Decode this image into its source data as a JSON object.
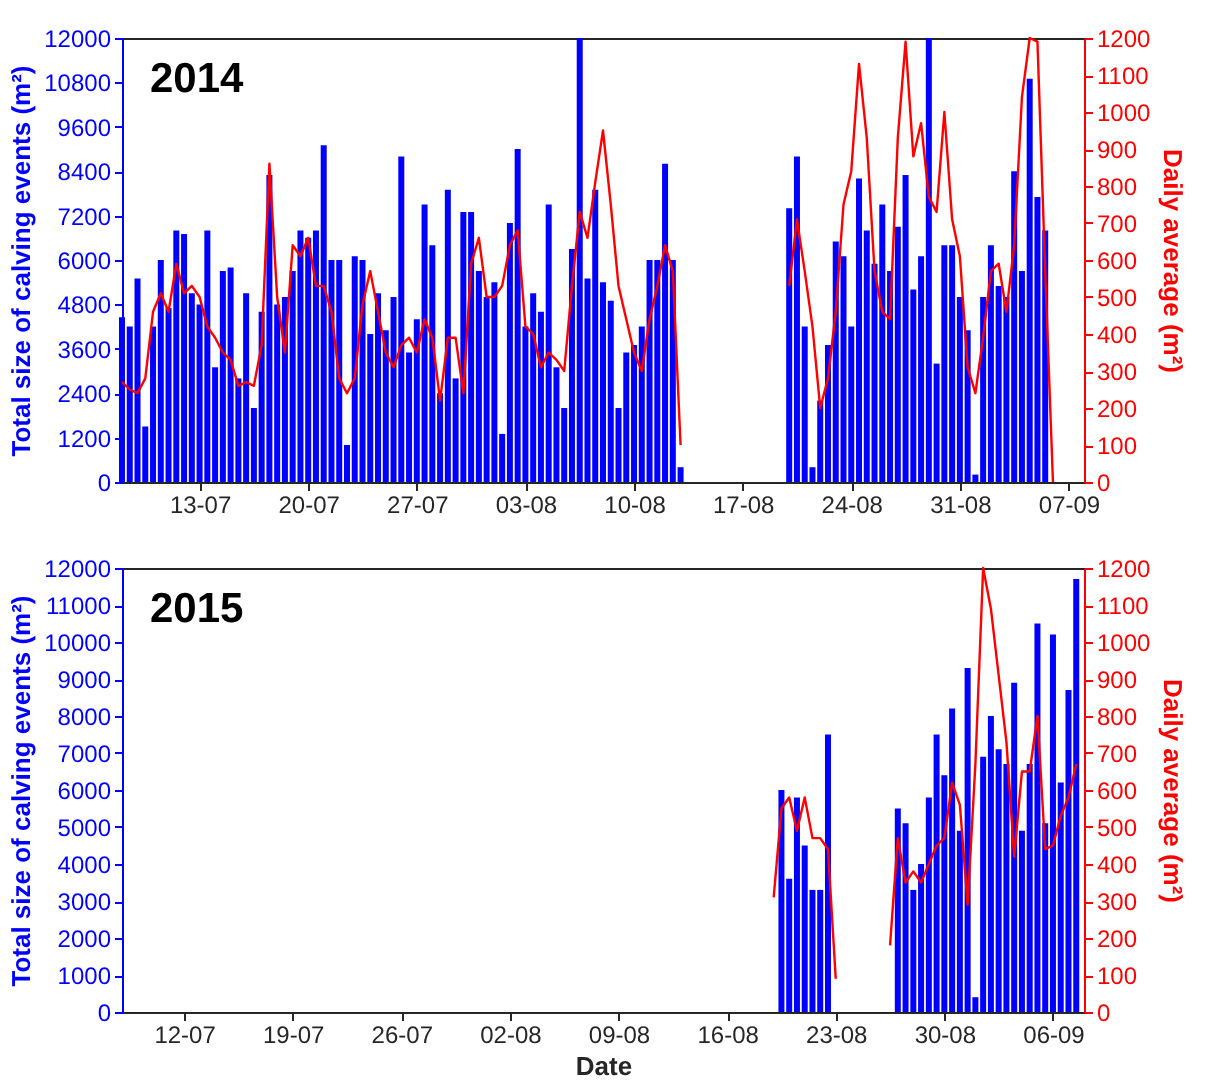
{
  "chart_data": [
    {
      "type": "bar",
      "title": "2014",
      "ylabel": "Total size of calving events (m²)",
      "y2label": "Daily average (m²)",
      "x": [
        "2014-07-08T00:00",
        "2014-07-08T12:00",
        "2014-07-09T00:00",
        "2014-07-09T12:00",
        "2014-07-10T00:00",
        "2014-07-10T12:00",
        "2014-07-11T00:00",
        "2014-07-11T12:00",
        "2014-07-12T00:00",
        "2014-07-12T12:00",
        "2014-07-13T00:00",
        "2014-07-13T12:00",
        "2014-07-14T00:00",
        "2014-07-14T12:00",
        "2014-07-15T00:00",
        "2014-07-15T12:00",
        "2014-07-16T00:00",
        "2014-07-16T12:00",
        "2014-07-17T00:00",
        "2014-07-17T12:00",
        "2014-07-18T00:00",
        "2014-07-18T12:00",
        "2014-07-19T00:00",
        "2014-07-19T12:00",
        "2014-07-20T00:00",
        "2014-07-20T12:00",
        "2014-07-21T00:00",
        "2014-07-21T12:00",
        "2014-07-22T00:00",
        "2014-07-22T12:00",
        "2014-07-23T00:00",
        "2014-07-23T12:00",
        "2014-07-24T00:00",
        "2014-07-24T12:00",
        "2014-07-25T00:00",
        "2014-07-25T12:00",
        "2014-07-26T00:00",
        "2014-07-26T12:00",
        "2014-07-27T00:00",
        "2014-07-27T12:00",
        "2014-07-28T00:00",
        "2014-07-28T12:00",
        "2014-07-29T00:00",
        "2014-07-29T12:00",
        "2014-07-30T00:00",
        "2014-07-30T12:00",
        "2014-07-31T00:00",
        "2014-07-31T12:00",
        "2014-08-01T00:00",
        "2014-08-01T12:00",
        "2014-08-02T00:00",
        "2014-08-02T12:00",
        "2014-08-03T00:00",
        "2014-08-03T12:00",
        "2014-08-04T00:00",
        "2014-08-04T12:00",
        "2014-08-05T00:00",
        "2014-08-05T12:00",
        "2014-08-06T00:00",
        "2014-08-06T12:00",
        "2014-08-07T00:00",
        "2014-08-07T12:00",
        "2014-08-08T00:00",
        "2014-08-08T12:00",
        "2014-08-09T00:00",
        "2014-08-09T12:00",
        "2014-08-10T00:00",
        "2014-08-10T12:00",
        "2014-08-11T00:00",
        "2014-08-11T12:00",
        "2014-08-12T00:00",
        "2014-08-12T12:00",
        "2014-08-13T00:00",
        "2014-08-13T12:00",
        "2014-08-14T00:00",
        "2014-08-14T12:00",
        "2014-08-15T00:00",
        "2014-08-15T12:00",
        "2014-08-16T00:00",
        "2014-08-16T12:00",
        "2014-08-17T00:00",
        "2014-08-17T12:00",
        "2014-08-18T00:00",
        "2014-08-18T12:00",
        "2014-08-19T00:00",
        "2014-08-19T12:00",
        "2014-08-20T00:00",
        "2014-08-20T12:00",
        "2014-08-21T00:00",
        "2014-08-21T12:00",
        "2014-08-22T00:00",
        "2014-08-22T12:00",
        "2014-08-23T00:00",
        "2014-08-23T12:00",
        "2014-08-24T00:00",
        "2014-08-24T12:00",
        "2014-08-25T00:00",
        "2014-08-25T12:00",
        "2014-08-26T00:00",
        "2014-08-26T12:00",
        "2014-08-27T00:00",
        "2014-08-27T12:00",
        "2014-08-28T00:00",
        "2014-08-28T12:00",
        "2014-08-29T00:00",
        "2014-08-29T12:00",
        "2014-08-30T00:00",
        "2014-08-30T12:00",
        "2014-08-31T00:00",
        "2014-08-31T12:00",
        "2014-09-01T00:00",
        "2014-09-01T12:00",
        "2014-09-02T00:00",
        "2014-09-02T12:00",
        "2014-09-03T00:00",
        "2014-09-03T12:00",
        "2014-09-04T00:00",
        "2014-09-04T12:00",
        "2014-09-05T00:00",
        "2014-09-05T12:00",
        "2014-09-06T00:00"
      ],
      "series": [
        {
          "color": "#0000ff",
          "values": [
            4450,
            4200,
            5500,
            1500,
            4200,
            6000,
            4700,
            6800,
            6700,
            5100,
            4800,
            6800,
            3100,
            5700,
            5800,
            2800,
            5100,
            2000,
            4600,
            8300,
            4800,
            5000,
            5700,
            6800,
            6600,
            6800,
            9100,
            6000,
            6000,
            1000,
            6100,
            6000,
            4000,
            5100,
            4100,
            5000,
            8800,
            3500,
            4400,
            7500,
            6400,
            2400,
            7900,
            2800,
            7300,
            7300,
            5700,
            5000,
            5400,
            1300,
            7000,
            9000,
            4200,
            5100,
            4600,
            7500,
            3100,
            2000,
            6300,
            12000,
            5500,
            7900,
            5400,
            4900,
            2000,
            3500,
            3700,
            4200,
            6000,
            6000,
            8600,
            6000,
            400,
            0,
            0,
            0,
            0,
            0,
            0,
            0,
            0,
            0,
            0,
            0,
            0,
            0,
            7400,
            8800,
            4200,
            400,
            2200,
            3700,
            6500,
            6100,
            4200,
            8200,
            6800,
            5900,
            7500,
            5700,
            6900,
            8300,
            5200,
            6100,
            12000,
            3200,
            6400,
            6400,
            5000,
            4100,
            200,
            5000,
            6400,
            5300,
            5000,
            8400,
            5700,
            10900,
            7700,
            6800,
            0
          ]
        },
        {
          "type": "line",
          "axis": "y2",
          "color": "#ff0000",
          "values": [
            270,
            250,
            240,
            280,
            460,
            510,
            460,
            590,
            510,
            530,
            500,
            420,
            390,
            350,
            330,
            260,
            270,
            260,
            370,
            860,
            500,
            350,
            640,
            610,
            660,
            530,
            530,
            460,
            280,
            240,
            280,
            480,
            570,
            460,
            350,
            310,
            370,
            390,
            350,
            440,
            390,
            220,
            390,
            390,
            240,
            590,
            660,
            500,
            500,
            530,
            640,
            680,
            420,
            400,
            310,
            350,
            330,
            300,
            530,
            730,
            660,
            810,
            950,
            750,
            530,
            440,
            350,
            300,
            440,
            530,
            640,
            570,
            100,
            null,
            null,
            null,
            null,
            null,
            null,
            null,
            null,
            null,
            null,
            null,
            null,
            null,
            530,
            710,
            570,
            420,
            200,
            280,
            460,
            750,
            840,
            1130,
            930,
            570,
            460,
            440,
            930,
            1190,
            880,
            970,
            770,
            730,
            1000,
            710,
            610,
            310,
            240,
            390,
            570,
            590,
            460,
            640,
            1040,
            1200,
            1190,
            570,
            0
          ]
        }
      ],
      "xlim": [
        "2014-07-08",
        "2014-09-08"
      ],
      "xticks": [
        {
          "value": "2014-07-13",
          "label": "13-07"
        },
        {
          "value": "2014-07-20",
          "label": "20-07"
        },
        {
          "value": "2014-07-27",
          "label": "27-07"
        },
        {
          "value": "2014-08-03",
          "label": "03-08"
        },
        {
          "value": "2014-08-10",
          "label": "10-08"
        },
        {
          "value": "2014-08-17",
          "label": "17-08"
        },
        {
          "value": "2014-08-24",
          "label": "24-08"
        },
        {
          "value": "2014-08-31",
          "label": "31-08"
        },
        {
          "value": "2014-09-07",
          "label": "07-09"
        }
      ],
      "ylim": [
        0,
        12000
      ],
      "yticks": [
        0,
        1200,
        2400,
        3600,
        4800,
        6000,
        7200,
        8400,
        9600,
        10800,
        12000
      ],
      "y2lim": [
        0,
        1200
      ],
      "y2ticks": [
        0,
        100,
        200,
        300,
        400,
        500,
        600,
        700,
        800,
        900,
        1000,
        1100,
        1200
      ],
      "grid": false,
      "legend": false,
      "marker": "none",
      "line_style": "solid"
    },
    {
      "type": "bar",
      "title": "2015",
      "xlabel": "Date",
      "ylabel": "Total size of calving events (m²)",
      "y2label": "Daily average (m²)",
      "x": [
        "2015-08-19T00:00",
        "2015-08-19T12:00",
        "2015-08-20T00:00",
        "2015-08-20T12:00",
        "2015-08-21T00:00",
        "2015-08-21T12:00",
        "2015-08-22T00:00",
        "2015-08-22T12:00",
        "2015-08-23T00:00",
        "2015-08-23T12:00",
        "2015-08-24T00:00",
        "2015-08-24T12:00",
        "2015-08-25T00:00",
        "2015-08-25T12:00",
        "2015-08-26T00:00",
        "2015-08-26T12:00",
        "2015-08-27T00:00",
        "2015-08-27T12:00",
        "2015-08-28T00:00",
        "2015-08-28T12:00",
        "2015-08-29T00:00",
        "2015-08-29T12:00",
        "2015-08-30T00:00",
        "2015-08-30T12:00",
        "2015-08-31T00:00",
        "2015-08-31T12:00",
        "2015-09-01T00:00",
        "2015-09-01T12:00",
        "2015-09-02T00:00",
        "2015-09-02T12:00",
        "2015-09-03T00:00",
        "2015-09-03T12:00",
        "2015-09-04T00:00",
        "2015-09-04T12:00",
        "2015-09-05T00:00",
        "2015-09-05T12:00",
        "2015-09-06T00:00",
        "2015-09-06T12:00",
        "2015-09-07T00:00",
        "2015-09-07T12:00"
      ],
      "series": [
        {
          "color": "#0000ff",
          "values": [
            0,
            6000,
            3600,
            5800,
            4500,
            3300,
            3300,
            7500,
            0,
            0,
            0,
            0,
            0,
            0,
            0,
            0,
            5500,
            5100,
            3300,
            4000,
            5800,
            7500,
            6400,
            8200,
            4900,
            9300,
            400,
            6900,
            8000,
            7100,
            6700,
            8900,
            4900,
            6700,
            10500,
            5100,
            10200,
            6200,
            8700,
            11700
          ]
        },
        {
          "type": "line",
          "axis": "y2",
          "color": "#ff0000",
          "values": [
            310,
            550,
            580,
            490,
            580,
            470,
            470,
            440,
            90,
            null,
            null,
            null,
            null,
            null,
            null,
            180,
            470,
            350,
            380,
            350,
            400,
            450,
            470,
            620,
            560,
            290,
            670,
            1200,
            1090,
            910,
            730,
            420,
            650,
            650,
            800,
            440,
            450,
            530,
            580,
            670
          ]
        }
      ],
      "xlim": [
        "2015-07-08",
        "2015-09-08"
      ],
      "xticks": [
        {
          "value": "2015-07-12",
          "label": "12-07"
        },
        {
          "value": "2015-07-19",
          "label": "19-07"
        },
        {
          "value": "2015-07-26",
          "label": "26-07"
        },
        {
          "value": "2015-08-02",
          "label": "02-08"
        },
        {
          "value": "2015-08-09",
          "label": "09-08"
        },
        {
          "value": "2015-08-16",
          "label": "16-08"
        },
        {
          "value": "2015-08-23",
          "label": "23-08"
        },
        {
          "value": "2015-08-30",
          "label": "30-08"
        },
        {
          "value": "2015-09-06",
          "label": "06-09"
        }
      ],
      "ylim": [
        0,
        12000
      ],
      "yticks": [
        0,
        1000,
        2000,
        3000,
        4000,
        5000,
        6000,
        7000,
        8000,
        9000,
        10000,
        11000,
        12000
      ],
      "y2lim": [
        0,
        1200
      ],
      "y2ticks": [
        0,
        100,
        200,
        300,
        400,
        500,
        600,
        700,
        800,
        900,
        1000,
        1100,
        1200
      ],
      "grid": false,
      "legend": false,
      "marker": "none",
      "line_style": "solid"
    }
  ]
}
